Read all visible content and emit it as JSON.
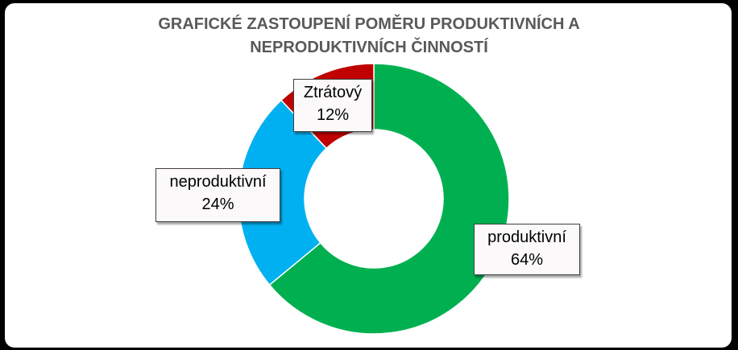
{
  "chart_data": {
    "type": "pie",
    "title_lines": [
      "GRAFICKÉ ZASTOUPENÍ POMĚRU PRODUKTIVNÍCH A",
      "NEPRODUKTIVNÍCH ČINNOSTÍ"
    ],
    "slices": [
      {
        "label": "produktivní",
        "value": 64,
        "display": "64%",
        "color": "#00b050"
      },
      {
        "label": "neproduktivní",
        "value": 24,
        "display": "24%",
        "color": "#00b0f0"
      },
      {
        "label": "Ztrátový",
        "value": 12,
        "display": "12%",
        "color": "#c00000"
      }
    ],
    "legend": "none"
  }
}
